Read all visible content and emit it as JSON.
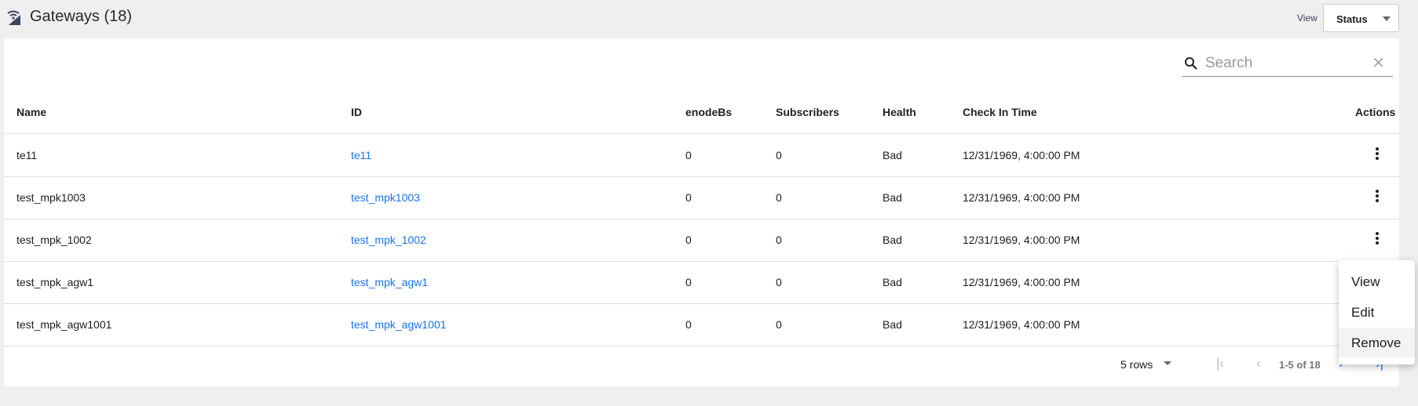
{
  "header": {
    "title": "Gateways (18)",
    "view_label": "View",
    "view_value": "Status"
  },
  "search": {
    "placeholder": "Search"
  },
  "table": {
    "columns": [
      "Name",
      "ID",
      "enodeBs",
      "Subscribers",
      "Health",
      "Check In Time",
      "Actions"
    ],
    "rows": [
      [
        "te11",
        "te11",
        "0",
        "0",
        "Bad",
        "12/31/1969, 4:00:00 PM"
      ],
      [
        "test_mpk1003",
        "test_mpk1003",
        "0",
        "0",
        "Bad",
        "12/31/1969, 4:00:00 PM"
      ],
      [
        "test_mpk_1002",
        "test_mpk_1002",
        "0",
        "0",
        "Bad",
        "12/31/1969, 4:00:00 PM"
      ],
      [
        "test_mpk_agw1",
        "test_mpk_agw1",
        "0",
        "0",
        "Bad",
        "12/31/1969, 4:00:00 PM"
      ],
      [
        "test_mpk_agw1001",
        "test_mpk_agw1001",
        "0",
        "0",
        "Bad",
        "12/31/1969, 4:00:00 PM"
      ]
    ]
  },
  "pagination": {
    "rows_per_page": "5 rows",
    "range": "1-5 of 18"
  },
  "menu": {
    "items": [
      "View",
      "Edit",
      "Remove"
    ],
    "hovered": "Remove"
  },
  "colors": {
    "link": "#1a73e8",
    "background": "#efefef"
  }
}
